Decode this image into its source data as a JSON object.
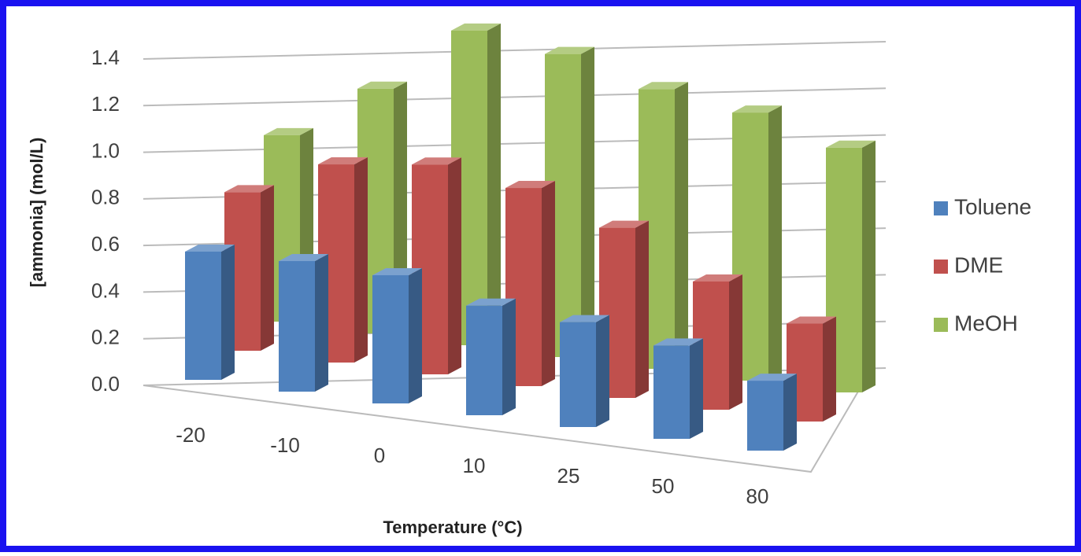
{
  "chart_data": {
    "type": "bar3d",
    "x_label": "Temperature (°C)",
    "y_label": "[ammonia] (mol/L)",
    "categories": [
      "-20",
      "-10",
      "0",
      "10",
      "25",
      "50",
      "80"
    ],
    "series": [
      {
        "name": "Toluene",
        "color": "#4f81bd",
        "values": [
          0.55,
          0.56,
          0.55,
          0.47,
          0.45,
          0.4,
          0.3
        ]
      },
      {
        "name": "DME",
        "color": "#c0504d",
        "values": [
          0.68,
          0.85,
          0.9,
          0.85,
          0.73,
          0.55,
          0.42
        ]
      },
      {
        "name": "MeOH",
        "color": "#9bbb59",
        "values": [
          0.8,
          1.05,
          1.35,
          1.3,
          1.2,
          1.15,
          1.05
        ]
      }
    ],
    "ylim": [
      0,
      1.4
    ],
    "yticks": [
      {
        "value": 0,
        "label": "0.0"
      },
      0.2,
      0.4,
      0.6,
      0.8,
      {
        "value": 1,
        "label": "1.0"
      },
      1.2,
      1.4
    ],
    "grid": true
  }
}
